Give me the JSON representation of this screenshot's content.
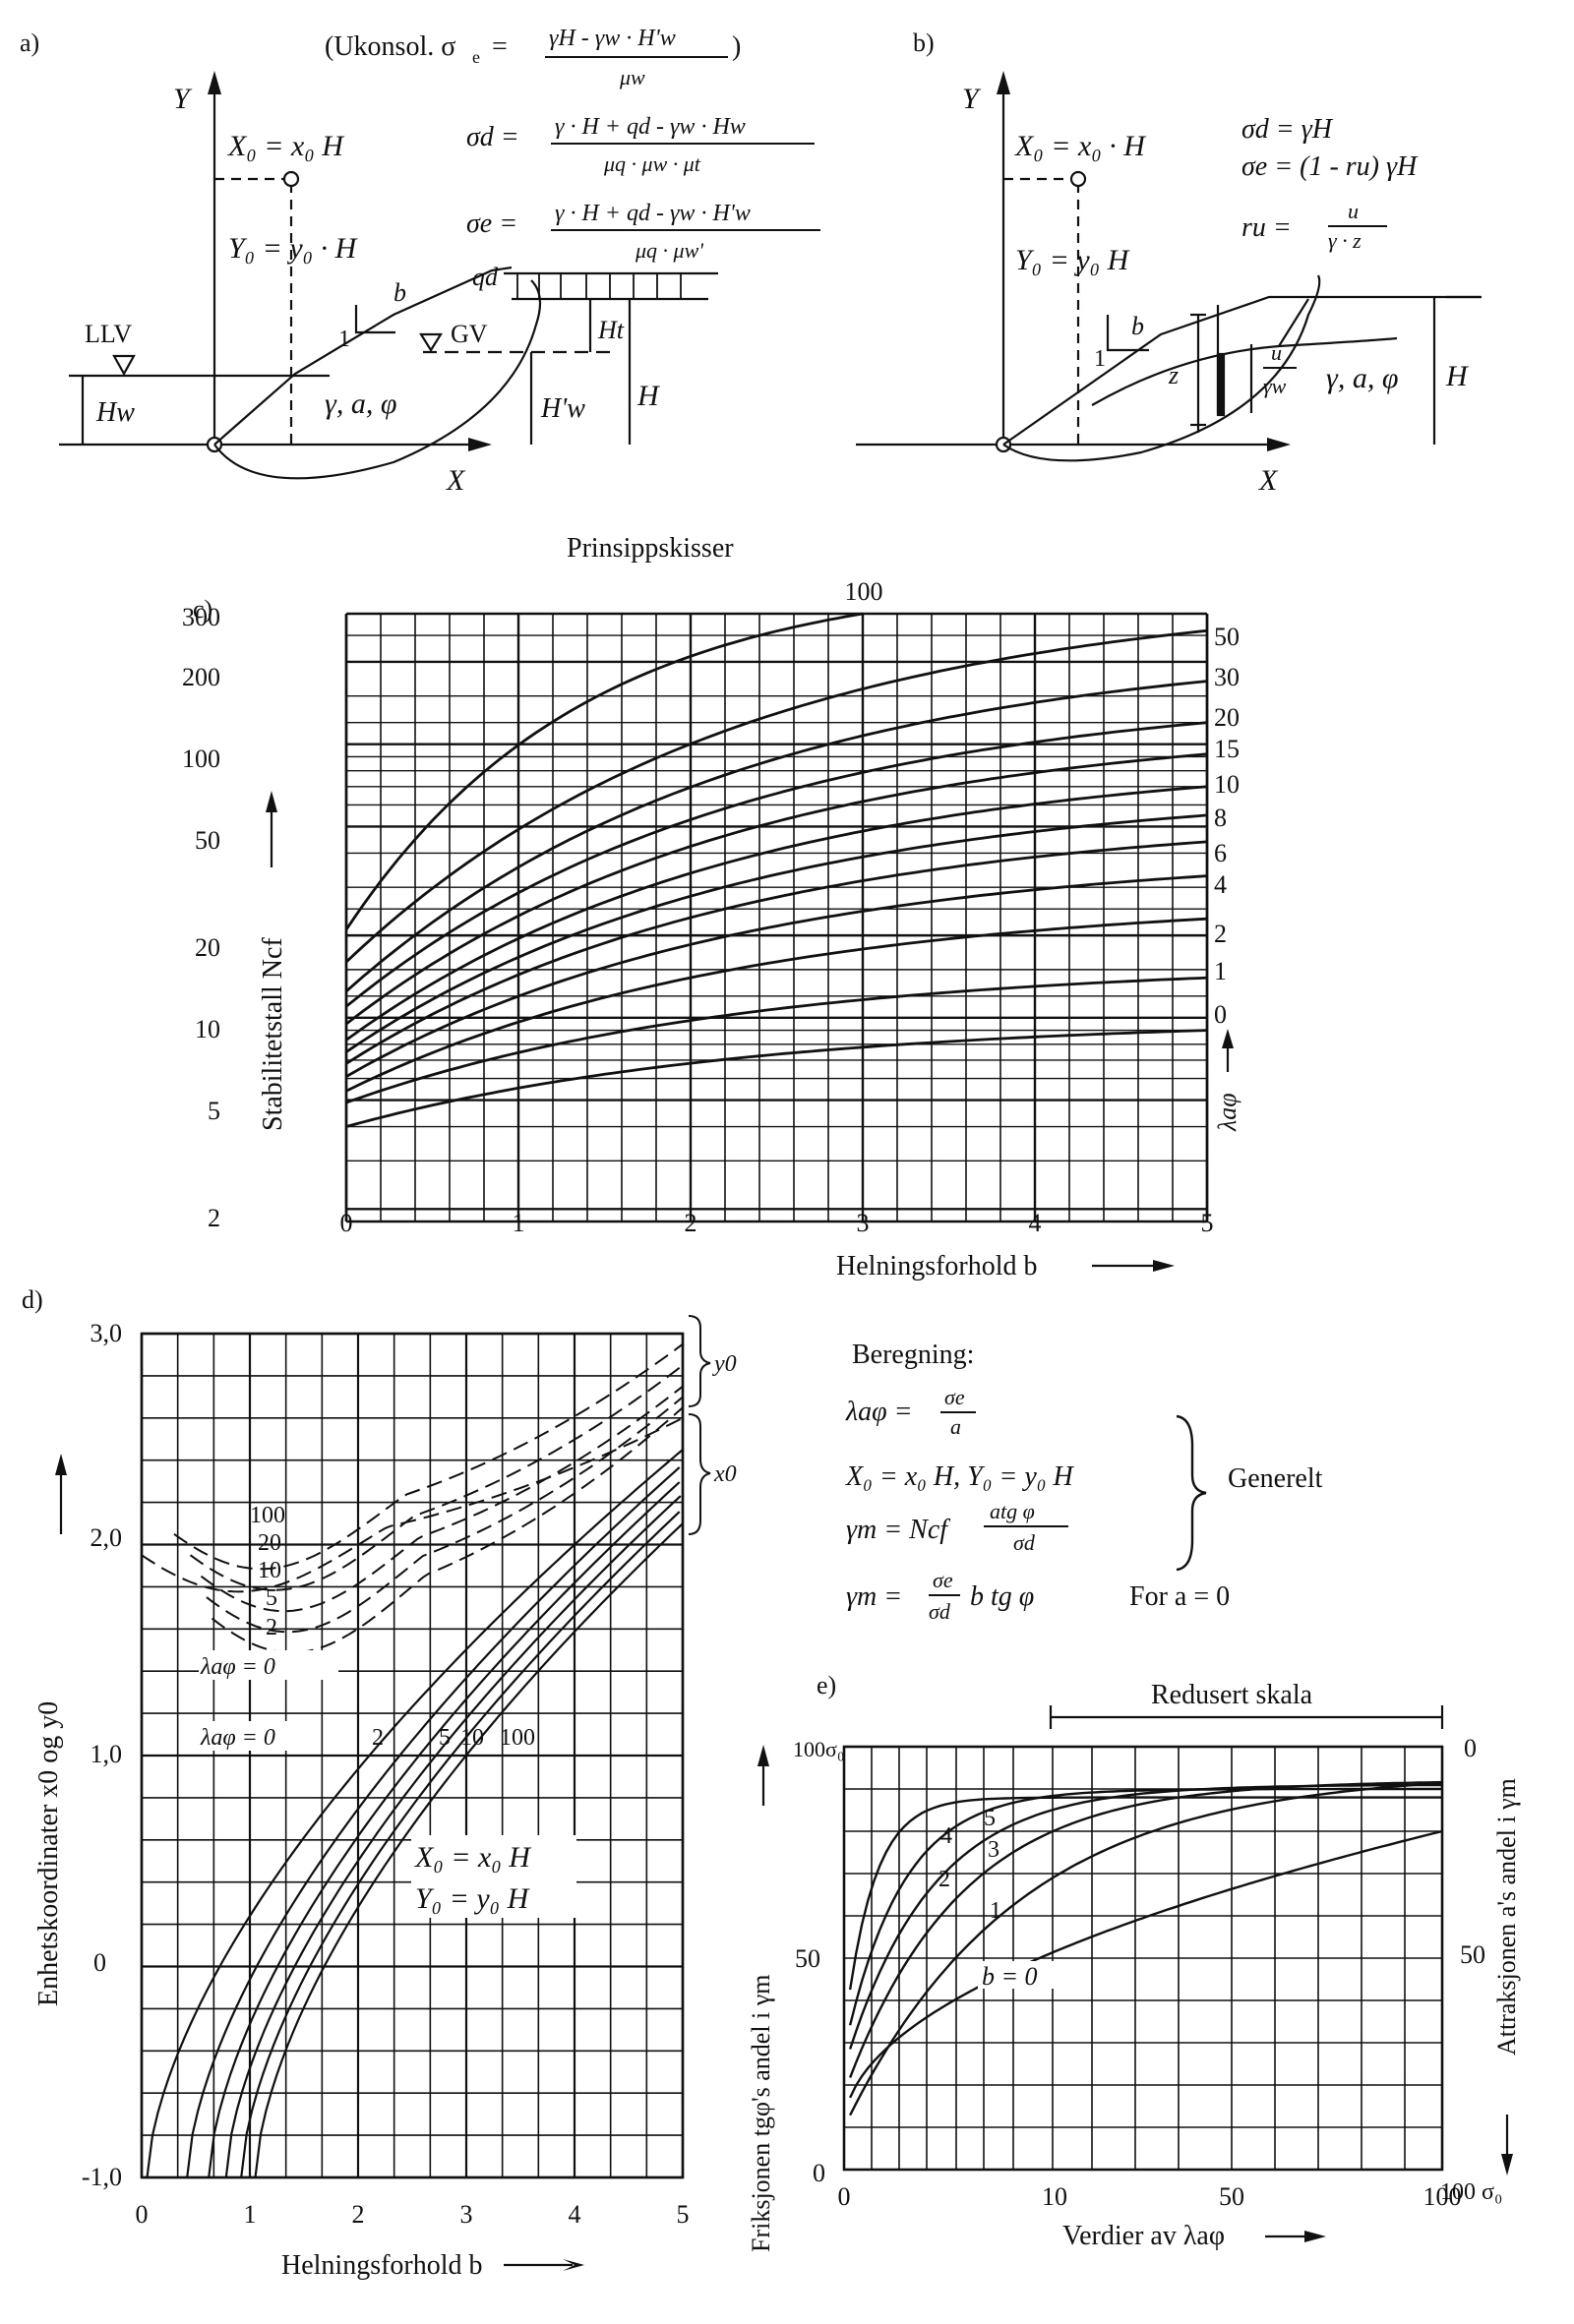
{
  "panel_labels": {
    "a": "a)",
    "b": "b)",
    "c": "c)",
    "d": "d)",
    "e": "e)"
  },
  "sketch_a": {
    "y_axis": "Y",
    "x_axis": "X",
    "x0_def": "X₀ = x₀ H",
    "y0_def": "Y₀ = y₀ · H",
    "ukonsol_prefix": "(Ukonsol. σ",
    "ukonsol_sub": "e",
    "ukonsol_num": "γH - γw · H'w",
    "ukonsol_den": "μw",
    "sigma_d_lhs": "σd =",
    "sigma_d_num": "γ · H + qd - γw · Hw",
    "sigma_d_den": "μq · μw · μt",
    "sigma_e_lhs": "σe =",
    "sigma_e_num": "γ · H + qd - γw · H'w",
    "sigma_e_den": "μq · μw'",
    "llv": "LLV",
    "gv": "GV",
    "hw": "Hw",
    "hw_prime": "H'w",
    "h": "H",
    "ht": "Ht",
    "qd": "qd",
    "b": "b",
    "one": "1",
    "soil": "γ, a, φ"
  },
  "sketch_b": {
    "y_axis": "Y",
    "x_axis": "X",
    "x0_def": "X₀ = x₀ · H",
    "y0_def": "Y₀ = y₀ H",
    "sigma_d": "σd = γH",
    "sigma_e": "σe = (1 - ru) γH",
    "ru_lhs": "ru =",
    "ru_num": "u",
    "ru_den": "γ · z",
    "b": "b",
    "one": "1",
    "z": "z",
    "u_num": "u",
    "u_den": "γw",
    "soil": "γ, a, φ",
    "h": "H"
  },
  "sketch_caption": "Prinsippskisser",
  "chart_c": {
    "ylabel": "Stabilitetstall Ncf",
    "xlabel": "Helningsforhold b",
    "lambda_label": "λaφ",
    "y_ticks": [
      "300",
      "200",
      "100",
      "50",
      "20",
      "10",
      "5",
      "2"
    ],
    "x_ticks": [
      "0",
      "1",
      "2",
      "3",
      "4",
      "5"
    ],
    "curve_labels": [
      "100",
      "50",
      "30",
      "20",
      "15",
      "10",
      "8",
      "6",
      "4",
      "2",
      "1",
      "0"
    ]
  },
  "chart_d": {
    "ylabel": "Enhetskoordinater x0 og y0",
    "xlabel": "Helningsforhold b",
    "y_ticks": [
      "3,0",
      "2,0",
      "1,0",
      "0",
      "-1,0"
    ],
    "x_ticks": [
      "0",
      "1",
      "2",
      "3",
      "4",
      "5"
    ],
    "y0_brace": "y0",
    "x0_brace": "x0",
    "y0_curve_labels": [
      "100",
      "20",
      "10",
      "5",
      "2"
    ],
    "y0_lambda_zero": "λaφ = 0",
    "x0_lambda_prefix": "λaφ = 0",
    "x0_curve_labels": [
      "2",
      "5",
      "10",
      "100"
    ],
    "defs": [
      "X₀ = x₀ H",
      "Y₀ = y₀ H"
    ]
  },
  "calc": {
    "heading": "Beregning:",
    "lambda_lhs": "λaφ =",
    "lambda_num": "σe",
    "lambda_den": "a",
    "xy_line": "X₀ = x₀ H, Y₀ = y₀ H",
    "gamma1_lhs": "γm = Ncf",
    "gamma1_num": "atg φ",
    "gamma1_den": "σd",
    "generelt": "Generelt",
    "gamma2_lhs": "γm =",
    "gamma2_num": "σe",
    "gamma2_den": "σd",
    "gamma2_tail": "b tg φ",
    "for_a0": "For a = 0"
  },
  "chart_e": {
    "redusert": "Redusert skala",
    "left_label": "Friksjonen tgφ's andel i γm",
    "right_label": "Attraksjonen a's andel i γm",
    "xlabel": "Verdier av λaφ",
    "left_ticks": [
      "100σ₀",
      "50",
      "0"
    ],
    "right_ticks": [
      "0",
      "50",
      "100 σ₀"
    ],
    "x_ticks": [
      "0",
      "10",
      "50",
      "100"
    ],
    "curve_labels": [
      "5",
      "4",
      "3",
      "2",
      "1",
      "b = 0"
    ]
  }
}
